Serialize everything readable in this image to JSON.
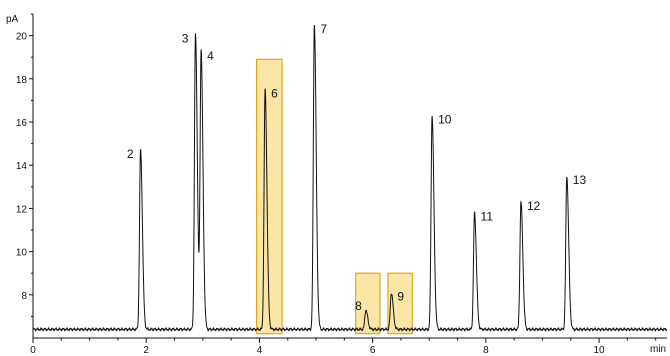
{
  "chart_data": {
    "type": "line",
    "title": "",
    "xlabel": "min",
    "ylabel": "pA",
    "xlim": [
      0,
      11.2
    ],
    "ylim": [
      6.0,
      21.0
    ],
    "x_ticks": [
      0,
      2,
      4,
      6,
      8,
      10
    ],
    "y_ticks": [
      8,
      10,
      12,
      14,
      16,
      18,
      20
    ],
    "baseline": 6.4,
    "line_color": "#111111",
    "highlight_fill": "#fbe6a6",
    "highlight_stroke": "#e0a820",
    "peaks": [
      {
        "label": "2",
        "x": 1.9,
        "y": 14.7
      },
      {
        "label": "3",
        "x": 2.87,
        "y": 20.05
      },
      {
        "label": "4",
        "x": 2.97,
        "y": 19.25
      },
      {
        "label": "6",
        "x": 4.1,
        "y": 17.5
      },
      {
        "label": "7",
        "x": 4.97,
        "y": 20.5
      },
      {
        "label": "8",
        "x": 5.88,
        "y": 7.3
      },
      {
        "label": "9",
        "x": 6.33,
        "y": 8.1
      },
      {
        "label": "10",
        "x": 7.05,
        "y": 16.3
      },
      {
        "label": "11",
        "x": 7.8,
        "y": 11.8
      },
      {
        "label": "12",
        "x": 8.62,
        "y": 12.3
      },
      {
        "label": "13",
        "x": 9.43,
        "y": 13.5
      }
    ],
    "highlight_regions": [
      {
        "x0": 3.95,
        "x1": 4.4,
        "y0": 6.2,
        "y1": 18.9
      },
      {
        "x0": 5.7,
        "x1": 6.13,
        "y0": 6.2,
        "y1": 9.0
      },
      {
        "x0": 6.27,
        "x1": 6.7,
        "y0": 6.2,
        "y1": 9.0
      }
    ]
  }
}
